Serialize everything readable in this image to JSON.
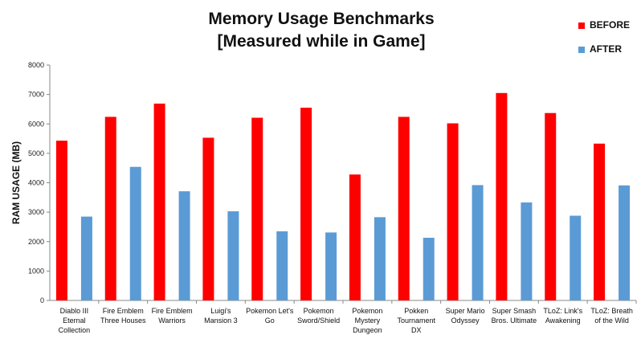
{
  "chart_data": {
    "type": "bar",
    "title": "Memory Usage Benchmarks",
    "subtitle": "[Measured while in Game]",
    "xlabel": "",
    "ylabel": "RAM USAGE (MB)",
    "ylim": [
      0,
      8000
    ],
    "yticks": [
      "0",
      "1000",
      "2000",
      "3000",
      "4000",
      "5000",
      "6000",
      "7000",
      "8000"
    ],
    "grid": false,
    "legend_position": "top-right",
    "categories": [
      "Diablo III Eternal Collection",
      "Fire Emblem Three Houses",
      "Fire Emblem Warriors",
      "Luigi's Mansion 3",
      "Pokemon Let's Go",
      "Pokemon Sword/Shield",
      "Pokemon Mystery Dungeon",
      "Pokken Tournament DX",
      "Super Mario Odyssey",
      "Super Smash Bros. Ultimate",
      "TLoZ: Link's Awakening",
      "TLoZ: Breath of the Wild"
    ],
    "category_lines": [
      [
        "Diablo III",
        "Eternal",
        "Collection"
      ],
      [
        "Fire Emblem",
        "Three Houses"
      ],
      [
        "Fire Emblem",
        "Warriors"
      ],
      [
        "Luigi's",
        "Mansion 3"
      ],
      [
        "Pokemon Let's",
        "Go"
      ],
      [
        "Pokemon",
        "Sword/Shield"
      ],
      [
        "Pokemon",
        "Mystery",
        "Dungeon"
      ],
      [
        "Pokken",
        "Tournament",
        "DX"
      ],
      [
        "Super Mario",
        "Odyssey"
      ],
      [
        "Super Smash",
        "Bros. Ultimate"
      ],
      [
        "TLoZ: Link's",
        "Awakening"
      ],
      [
        "TLoZ: Breath",
        "of the Wild"
      ]
    ],
    "series": [
      {
        "name": "BEFORE",
        "color": "#ff0000",
        "values": [
          5430,
          6240,
          6690,
          5530,
          6210,
          6550,
          4280,
          6240,
          6020,
          7050,
          6370,
          5330
        ]
      },
      {
        "name": "AFTER",
        "color": "#5b9bd5",
        "values": [
          2850,
          4540,
          3710,
          3030,
          2350,
          2310,
          2830,
          2130,
          3920,
          3330,
          2880,
          3910
        ]
      }
    ]
  }
}
